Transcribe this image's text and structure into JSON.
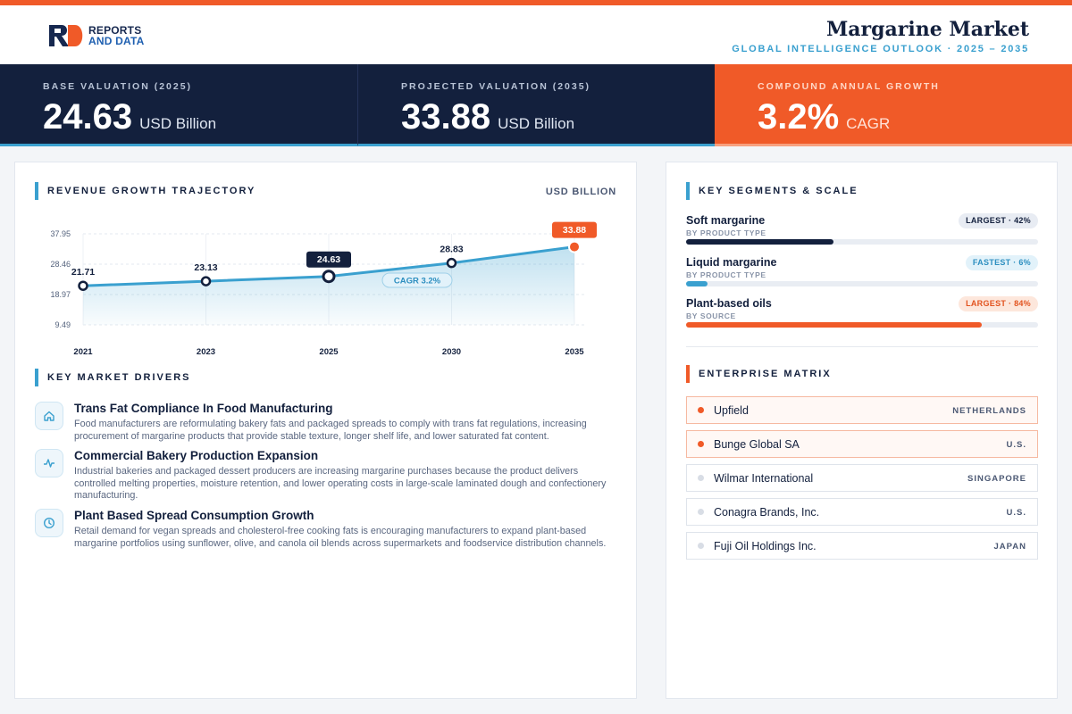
{
  "brand": {
    "line1": "REPORTS",
    "line2": "AND DATA",
    "accent": "#f05a28",
    "navy": "#13203d",
    "blue": "#3aa0cf"
  },
  "header": {
    "title": "Margarine Market",
    "subtitle": "GLOBAL INTELLIGENCE OUTLOOK  ·  2025 – 2035"
  },
  "stats": [
    {
      "label": "BASE VALUATION (2025)",
      "value": "24.63",
      "unit": "USD Billion"
    },
    {
      "label": "PROJECTED VALUATION (2035)",
      "value": "33.88",
      "unit": "USD Billion"
    },
    {
      "label": "COMPOUND ANNUAL GROWTH",
      "value": "3.2%",
      "unit": "CAGR"
    }
  ],
  "revenue": {
    "heading": "REVENUE GROWTH TRAJECTORY",
    "unit": "USD BILLION",
    "cagr_label": "CAGR 3.2%"
  },
  "chart_data": {
    "type": "area",
    "x": [
      "2021",
      "2023",
      "2025",
      "2030",
      "2035"
    ],
    "values": [
      21.71,
      23.13,
      24.63,
      28.83,
      33.88
    ],
    "labels": [
      "21.71",
      "23.13",
      "24.63",
      "28.83",
      "33.88"
    ],
    "y_ticks": [
      "37.95",
      "28.46",
      "18.97",
      "9.49"
    ],
    "ylim": [
      9.49,
      37.95
    ],
    "grid": true,
    "highlight": [
      "2025",
      "2035"
    ]
  },
  "drivers": {
    "heading": "KEY MARKET DRIVERS",
    "items": [
      {
        "icon": "home-icon",
        "title": "Trans Fat Compliance In Food Manufacturing",
        "text": "Food manufacturers are reformulating bakery fats and packaged spreads to comply with trans fat regulations, increasing procurement of margarine products that provide stable texture, longer shelf life, and lower saturated fat content."
      },
      {
        "icon": "activity-icon",
        "title": "Commercial Bakery Production Expansion",
        "text": "Industrial bakeries and packaged dessert producers are increasing margarine purchases because the product delivers controlled melting properties, moisture retention, and lower operating costs in large-scale laminated dough and confectionery manufacturing."
      },
      {
        "icon": "clock-icon",
        "title": "Plant Based Spread Consumption Growth",
        "text": "Retail demand for vegan spreads and cholesterol-free cooking fats is encouraging manufacturers to expand plant-based margarine portfolios using sunflower, olive, and canola oil blends across supermarkets and foodservice distribution channels."
      }
    ]
  },
  "segments": {
    "heading": "KEY SEGMENTS & SCALE",
    "items": [
      {
        "name": "Soft margarine",
        "sub": "BY PRODUCT TYPE",
        "badge": "LARGEST · 42%",
        "share": 0.42,
        "color": "#13203d",
        "style": "navy"
      },
      {
        "name": "Liquid margarine",
        "sub": "BY PRODUCT TYPE",
        "badge": "FASTEST · 6%",
        "share": 0.06,
        "color": "#3aa0cf",
        "style": "blue"
      },
      {
        "name": "Plant-based oils",
        "sub": "BY SOURCE",
        "badge": "LARGEST · 84%",
        "share": 0.84,
        "color": "#f05a28",
        "style": "orange"
      }
    ]
  },
  "enterprise": {
    "heading": "ENTERPRISE MATRIX",
    "items": [
      {
        "name": "Upfield",
        "country": "NETHERLANDS",
        "highlight": true
      },
      {
        "name": "Bunge Global SA",
        "country": "U.S.",
        "highlight": true
      },
      {
        "name": "Wilmar International",
        "country": "SINGAPORE",
        "highlight": false
      },
      {
        "name": "Conagra Brands, Inc.",
        "country": "U.S.",
        "highlight": false
      },
      {
        "name": "Fuji Oil Holdings Inc.",
        "country": "JAPAN",
        "highlight": false
      }
    ]
  }
}
